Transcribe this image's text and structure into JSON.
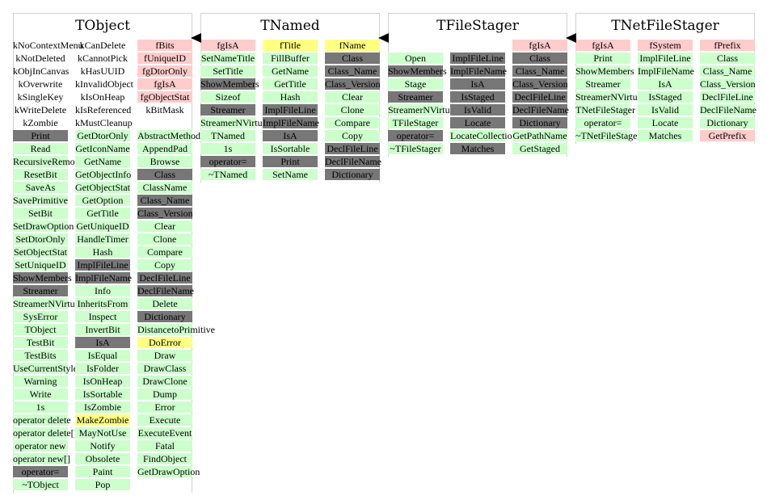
{
  "classes": [
    {
      "title": "TObject",
      "columns": [
        [
          {
            "t": "kNoContextMenu",
            "k": "none"
          },
          {
            "t": "kNotDeleted",
            "k": "none"
          },
          {
            "t": "kObjInCanvas",
            "k": "none"
          },
          {
            "t": "kOverwrite",
            "k": "none"
          },
          {
            "t": "kSingleKey",
            "k": "none"
          },
          {
            "t": "kWriteDelete",
            "k": "none"
          },
          {
            "t": "kZombie",
            "k": "none"
          },
          {
            "t": "Print",
            "k": "gray"
          },
          {
            "t": "Read",
            "k": "green"
          },
          {
            "t": "RecursiveRemove",
            "k": "green"
          },
          {
            "t": "ResetBit",
            "k": "green"
          },
          {
            "t": "SaveAs",
            "k": "green"
          },
          {
            "t": "SavePrimitive",
            "k": "green"
          },
          {
            "t": "SetBit",
            "k": "green"
          },
          {
            "t": "SetDrawOption",
            "k": "green"
          },
          {
            "t": "SetDtorOnly",
            "k": "green"
          },
          {
            "t": "SetObjectStat",
            "k": "green"
          },
          {
            "t": "SetUniqueID",
            "k": "green"
          },
          {
            "t": "ShowMembers",
            "k": "gray"
          },
          {
            "t": "Streamer",
            "k": "gray"
          },
          {
            "t": "StreamerNVirtual",
            "k": "green"
          },
          {
            "t": "SysError",
            "k": "green"
          },
          {
            "t": "TObject",
            "k": "green"
          },
          {
            "t": "TestBit",
            "k": "green"
          },
          {
            "t": "TestBits",
            "k": "green"
          },
          {
            "t": "UseCurrentStyle",
            "k": "green"
          },
          {
            "t": "Warning",
            "k": "green"
          },
          {
            "t": "Write",
            "k": "green"
          },
          {
            "t": "1s",
            "k": "green"
          },
          {
            "t": "operator delete",
            "k": "green"
          },
          {
            "t": "operator delete[]",
            "k": "green"
          },
          {
            "t": "operator new",
            "k": "green"
          },
          {
            "t": "operator new[]",
            "k": "green"
          },
          {
            "t": "operator=",
            "k": "gray"
          },
          {
            "t": "~TObject",
            "k": "green"
          }
        ],
        [
          {
            "t": "kCanDelete",
            "k": "none"
          },
          {
            "t": "kCannotPick",
            "k": "none"
          },
          {
            "t": "kHasUUID",
            "k": "none"
          },
          {
            "t": "kInvalidObject",
            "k": "none"
          },
          {
            "t": "kIsOnHeap",
            "k": "none"
          },
          {
            "t": "kIsReferenced",
            "k": "none"
          },
          {
            "t": "kMustCleanup",
            "k": "none"
          },
          {
            "t": "GetDtorOnly",
            "k": "green"
          },
          {
            "t": "GetIconName",
            "k": "green"
          },
          {
            "t": "GetName",
            "k": "green"
          },
          {
            "t": "GetObjectInfo",
            "k": "green"
          },
          {
            "t": "GetObjectStat",
            "k": "green"
          },
          {
            "t": "GetOption",
            "k": "green"
          },
          {
            "t": "GetTitle",
            "k": "green"
          },
          {
            "t": "GetUniqueID",
            "k": "green"
          },
          {
            "t": "HandleTimer",
            "k": "green"
          },
          {
            "t": "Hash",
            "k": "green"
          },
          {
            "t": "ImplFileLine",
            "k": "gray"
          },
          {
            "t": "ImplFileName",
            "k": "gray"
          },
          {
            "t": "Info",
            "k": "green"
          },
          {
            "t": "InheritsFrom",
            "k": "green"
          },
          {
            "t": "Inspect",
            "k": "green"
          },
          {
            "t": "InvertBit",
            "k": "green"
          },
          {
            "t": "IsA",
            "k": "gray"
          },
          {
            "t": "IsEqual",
            "k": "green"
          },
          {
            "t": "IsFolder",
            "k": "green"
          },
          {
            "t": "IsOnHeap",
            "k": "green"
          },
          {
            "t": "IsSortable",
            "k": "green"
          },
          {
            "t": "IsZombie",
            "k": "green"
          },
          {
            "t": "MakeZombie",
            "k": "yellow"
          },
          {
            "t": "MayNotUse",
            "k": "green"
          },
          {
            "t": "Notify",
            "k": "green"
          },
          {
            "t": "Obsolete",
            "k": "green"
          },
          {
            "t": "Paint",
            "k": "green"
          },
          {
            "t": "Pop",
            "k": "green"
          }
        ],
        [
          {
            "t": "fBits",
            "k": "pink"
          },
          {
            "t": "fUniqueID",
            "k": "pink"
          },
          {
            "t": "fgDtorOnly",
            "k": "pink"
          },
          {
            "t": "fgIsA",
            "k": "pink"
          },
          {
            "t": "fgObjectStat",
            "k": "pink"
          },
          {
            "t": "kBitMask",
            "k": "none"
          },
          {
            "t": "",
            "k": "none"
          },
          {
            "t": "AbstractMethod",
            "k": "green"
          },
          {
            "t": "AppendPad",
            "k": "green"
          },
          {
            "t": "Browse",
            "k": "green"
          },
          {
            "t": "Class",
            "k": "gray"
          },
          {
            "t": "ClassName",
            "k": "green"
          },
          {
            "t": "Class_Name",
            "k": "gray"
          },
          {
            "t": "Class_Version",
            "k": "gray"
          },
          {
            "t": "Clear",
            "k": "green"
          },
          {
            "t": "Clone",
            "k": "green"
          },
          {
            "t": "Compare",
            "k": "green"
          },
          {
            "t": "Copy",
            "k": "green"
          },
          {
            "t": "DeclFileLine",
            "k": "gray"
          },
          {
            "t": "DeclFileName",
            "k": "gray"
          },
          {
            "t": "Delete",
            "k": "green"
          },
          {
            "t": "Dictionary",
            "k": "gray"
          },
          {
            "t": "DistancetoPrimitive",
            "k": "green"
          },
          {
            "t": "DoError",
            "k": "yellow"
          },
          {
            "t": "Draw",
            "k": "green"
          },
          {
            "t": "DrawClass",
            "k": "green"
          },
          {
            "t": "DrawClone",
            "k": "green"
          },
          {
            "t": "Dump",
            "k": "green"
          },
          {
            "t": "Error",
            "k": "green"
          },
          {
            "t": "Execute",
            "k": "green"
          },
          {
            "t": "ExecuteEvent",
            "k": "green"
          },
          {
            "t": "Fatal",
            "k": "green"
          },
          {
            "t": "FindObject",
            "k": "green"
          },
          {
            "t": "GetDrawOption",
            "k": "green"
          }
        ]
      ]
    },
    {
      "title": "TNamed",
      "columns": [
        [
          {
            "t": "fgIsA",
            "k": "pink"
          },
          {
            "t": "SetNameTitle",
            "k": "green"
          },
          {
            "t": "SetTitle",
            "k": "green"
          },
          {
            "t": "ShowMembers",
            "k": "gray"
          },
          {
            "t": "Sizeof",
            "k": "green"
          },
          {
            "t": "Streamer",
            "k": "gray"
          },
          {
            "t": "StreamerNVirtual",
            "k": "green"
          },
          {
            "t": "TNamed",
            "k": "green"
          },
          {
            "t": "1s",
            "k": "green"
          },
          {
            "t": "operator=",
            "k": "gray"
          },
          {
            "t": "~TNamed",
            "k": "green"
          }
        ],
        [
          {
            "t": "fTitle",
            "k": "yellow"
          },
          {
            "t": "FillBuffer",
            "k": "green"
          },
          {
            "t": "GetName",
            "k": "green"
          },
          {
            "t": "GetTitle",
            "k": "green"
          },
          {
            "t": "Hash",
            "k": "green"
          },
          {
            "t": "ImplFileLine",
            "k": "gray"
          },
          {
            "t": "ImplFileName",
            "k": "gray"
          },
          {
            "t": "IsA",
            "k": "gray"
          },
          {
            "t": "IsSortable",
            "k": "green"
          },
          {
            "t": "Print",
            "k": "gray"
          },
          {
            "t": "SetName",
            "k": "green"
          }
        ],
        [
          {
            "t": "fName",
            "k": "yellow"
          },
          {
            "t": "Class",
            "k": "gray"
          },
          {
            "t": "Class_Name",
            "k": "gray"
          },
          {
            "t": "Class_Version",
            "k": "gray"
          },
          {
            "t": "Clear",
            "k": "green"
          },
          {
            "t": "Clone",
            "k": "green"
          },
          {
            "t": "Compare",
            "k": "green"
          },
          {
            "t": "Copy",
            "k": "green"
          },
          {
            "t": "DeclFileLine",
            "k": "gray"
          },
          {
            "t": "DeclFileName",
            "k": "gray"
          },
          {
            "t": "Dictionary",
            "k": "gray"
          }
        ]
      ]
    },
    {
      "title": "TFileStager",
      "columns": [
        [
          {
            "t": "",
            "k": "none"
          },
          {
            "t": "Open",
            "k": "green"
          },
          {
            "t": "ShowMembers",
            "k": "gray"
          },
          {
            "t": "Stage",
            "k": "green"
          },
          {
            "t": "Streamer",
            "k": "gray"
          },
          {
            "t": "StreamerNVirtual",
            "k": "green"
          },
          {
            "t": "TFileStager",
            "k": "green"
          },
          {
            "t": "operator=",
            "k": "gray"
          },
          {
            "t": "~TFileStager",
            "k": "green"
          }
        ],
        [
          {
            "t": "",
            "k": "none"
          },
          {
            "t": "ImplFileLine",
            "k": "gray"
          },
          {
            "t": "ImplFileName",
            "k": "gray"
          },
          {
            "t": "IsA",
            "k": "gray"
          },
          {
            "t": "IsStaged",
            "k": "gray"
          },
          {
            "t": "IsValid",
            "k": "gray"
          },
          {
            "t": "Locate",
            "k": "gray"
          },
          {
            "t": "LocateCollection",
            "k": "green"
          },
          {
            "t": "Matches",
            "k": "gray"
          }
        ],
        [
          {
            "t": "fgIsA",
            "k": "pink"
          },
          {
            "t": "Class",
            "k": "gray"
          },
          {
            "t": "Class_Name",
            "k": "gray"
          },
          {
            "t": "Class_Version",
            "k": "gray"
          },
          {
            "t": "DeclFileLine",
            "k": "gray"
          },
          {
            "t": "DeclFileName",
            "k": "gray"
          },
          {
            "t": "Dictionary",
            "k": "gray"
          },
          {
            "t": "GetPathName",
            "k": "green"
          },
          {
            "t": "GetStaged",
            "k": "green"
          }
        ]
      ]
    },
    {
      "title": "TNetFileStager",
      "columns": [
        [
          {
            "t": "fgIsA",
            "k": "pink"
          },
          {
            "t": "Print",
            "k": "green"
          },
          {
            "t": "ShowMembers",
            "k": "green"
          },
          {
            "t": "Streamer",
            "k": "green"
          },
          {
            "t": "StreamerNVirtual",
            "k": "green"
          },
          {
            "t": "TNetFileStager",
            "k": "green"
          },
          {
            "t": "operator=",
            "k": "green"
          },
          {
            "t": "~TNetFileStager",
            "k": "green"
          }
        ],
        [
          {
            "t": "fSystem",
            "k": "pink"
          },
          {
            "t": "ImplFileLine",
            "k": "green"
          },
          {
            "t": "ImplFileName",
            "k": "green"
          },
          {
            "t": "IsA",
            "k": "green"
          },
          {
            "t": "IsStaged",
            "k": "green"
          },
          {
            "t": "IsValid",
            "k": "green"
          },
          {
            "t": "Locate",
            "k": "green"
          },
          {
            "t": "Matches",
            "k": "green"
          }
        ],
        [
          {
            "t": "fPrefix",
            "k": "pink"
          },
          {
            "t": "Class",
            "k": "green"
          },
          {
            "t": "Class_Name",
            "k": "green"
          },
          {
            "t": "Class_Version",
            "k": "green"
          },
          {
            "t": "DeclFileLine",
            "k": "green"
          },
          {
            "t": "DeclFileName",
            "k": "green"
          },
          {
            "t": "Dictionary",
            "k": "green"
          },
          {
            "t": "GetPrefix",
            "k": "pink"
          }
        ]
      ]
    }
  ],
  "colors": {
    "green": "#ccffcc",
    "gray": "#777777",
    "pink": "#ffcccc",
    "yellow": "#ffff80",
    "arrow": "#000000"
  }
}
